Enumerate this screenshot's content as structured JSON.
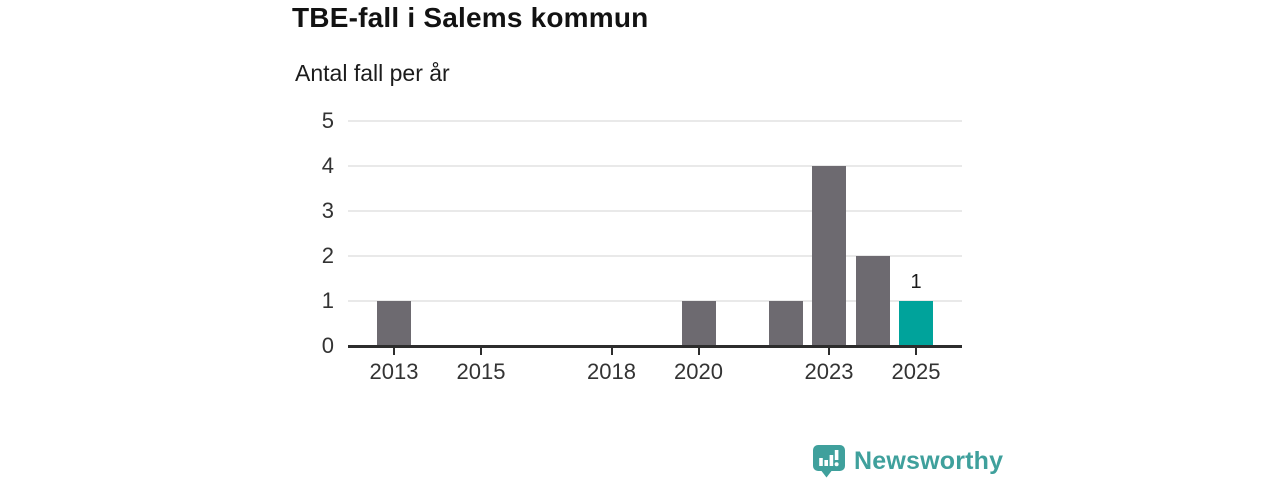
{
  "chart_data": {
    "type": "bar",
    "title": "TBE-fall i Salems kommun",
    "subtitle": "Antal fall per år",
    "categories": [
      "2013",
      "2014",
      "2015",
      "2016",
      "2017",
      "2018",
      "2019",
      "2020",
      "2021",
      "2022",
      "2023",
      "2024",
      "2025"
    ],
    "values": [
      1,
      0,
      0,
      0,
      0,
      0,
      0,
      1,
      0,
      1,
      4,
      2,
      1
    ],
    "bar_color": "#6d6a70",
    "highlight_color": "#00a39b",
    "highlight_category": "2025",
    "highlight_value_label": "1",
    "x_tick_labels": [
      "2013",
      "2015",
      "2018",
      "2020",
      "2023",
      "2025"
    ],
    "y_ticks": [
      "0",
      "1",
      "2",
      "3",
      "4",
      "5"
    ],
    "ylim": [
      0,
      5
    ],
    "grid": true,
    "legend": "none",
    "gridline_color": "#e9e9e9",
    "axis_color": "#2d2d2d",
    "tick_label_color": "#333333"
  },
  "branding": {
    "logo_text": "Newsworthy",
    "logo_icon": "bar-chart-speech-bubble-icon",
    "logo_color": "#3fa09c"
  }
}
